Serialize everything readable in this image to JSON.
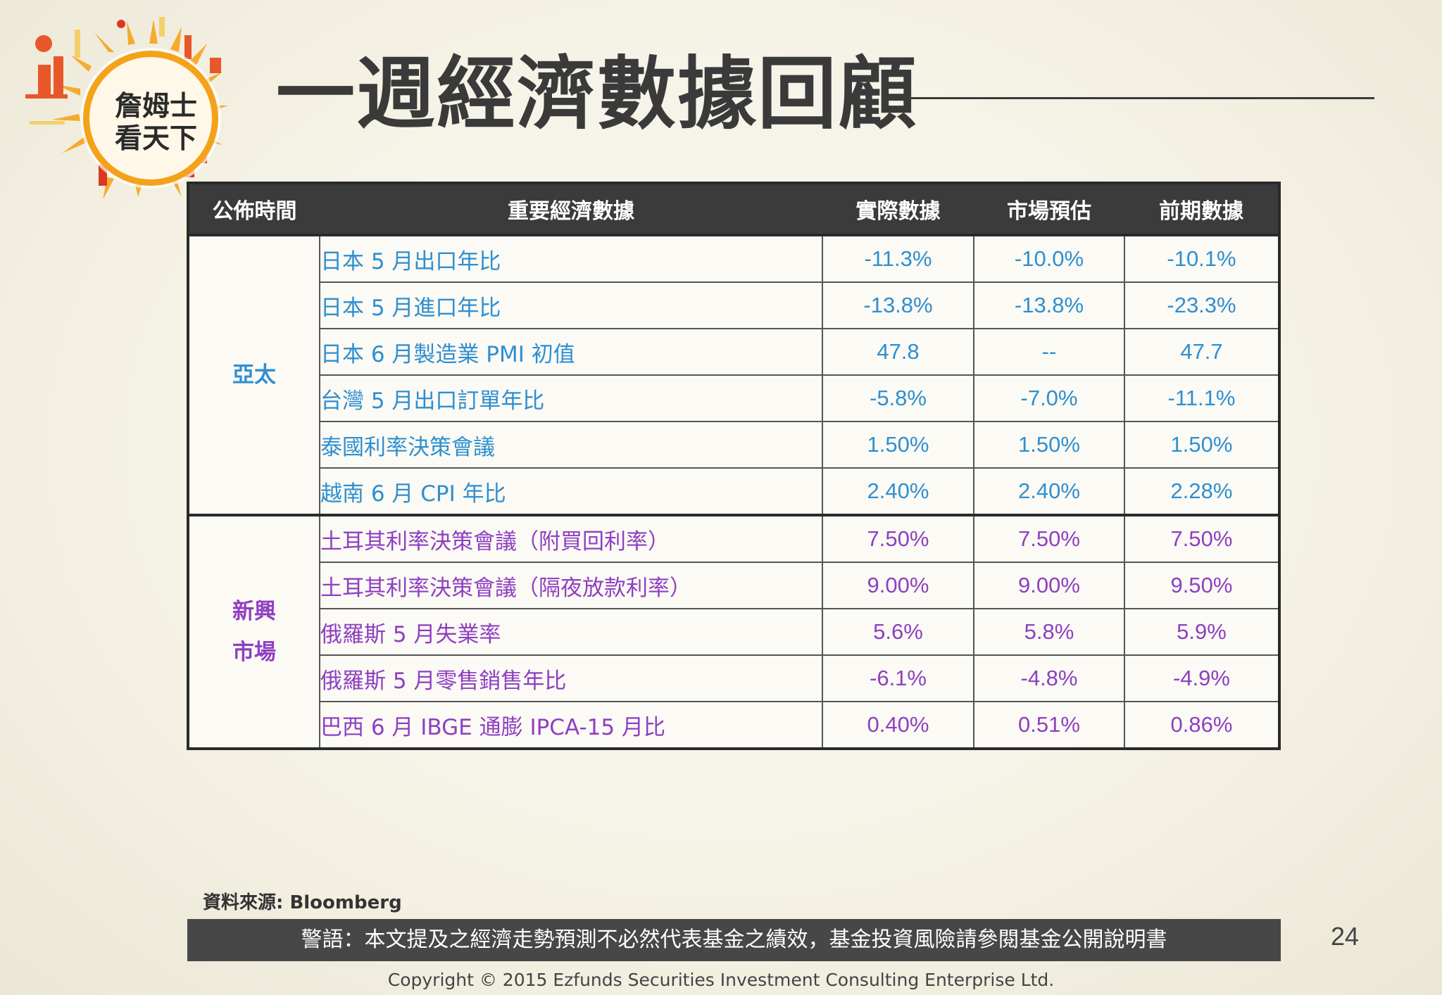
{
  "logo": {
    "line1": "詹姆士",
    "line2": "看天下"
  },
  "title": "一週經濟數據回顧",
  "table": {
    "headers": [
      "公佈時間",
      "重要經濟數據",
      "實際數據",
      "市場預估",
      "前期數據"
    ],
    "groups": [
      {
        "region": "亞太",
        "rows": [
          {
            "name": "日本 5 月出口年比",
            "actual": "-11.3%",
            "forecast": "-10.0%",
            "previous": "-10.1%"
          },
          {
            "name": "日本 5 月進口年比",
            "actual": "-13.8%",
            "forecast": "-13.8%",
            "previous": "-23.3%"
          },
          {
            "name": "日本 6 月製造業 PMI 初值",
            "actual": "47.8",
            "forecast": "--",
            "previous": "47.7"
          },
          {
            "name": "台灣 5 月出口訂單年比",
            "actual": "-5.8%",
            "forecast": "-7.0%",
            "previous": "-11.1%"
          },
          {
            "name": "泰國利率決策會議",
            "actual": "1.50%",
            "forecast": "1.50%",
            "previous": "1.50%"
          },
          {
            "name": "越南 6 月 CPI 年比",
            "actual": "2.40%",
            "forecast": "2.40%",
            "previous": "2.28%"
          }
        ]
      },
      {
        "region_line1": "新興",
        "region_line2": "市場",
        "rows": [
          {
            "name": "土耳其利率決策會議（附買回利率）",
            "actual": "7.50%",
            "forecast": "7.50%",
            "previous": "7.50%"
          },
          {
            "name": "土耳其利率決策會議（隔夜放款利率）",
            "actual": "9.00%",
            "forecast": "9.00%",
            "previous": "9.50%"
          },
          {
            "name": "俄羅斯 5 月失業率",
            "actual": "5.6%",
            "forecast": "5.8%",
            "previous": "5.9%"
          },
          {
            "name": "俄羅斯 5 月零售銷售年比",
            "actual": "-6.1%",
            "forecast": "-4.8%",
            "previous": "-4.9%"
          },
          {
            "name": "巴西 6 月 IBGE 通膨 IPCA-15 月比",
            "actual": "0.40%",
            "forecast": "0.51%",
            "previous": "0.86%"
          }
        ]
      }
    ]
  },
  "source": "資料來源: Bloomberg",
  "warning": "警語：本文提及之經濟走勢預測不必然代表基金之績效，基金投資風險請參閱基金公開說明書",
  "page_number": "24",
  "copyright": "Copyright © 2015 Ezfunds Securities Investment Consulting Enterprise Ltd.",
  "colors": {
    "asia": "#2e8fd0",
    "emerging": "#8e3fc2",
    "header_bg": "#3b3b3b",
    "logo_orange": "#f4a21a"
  }
}
